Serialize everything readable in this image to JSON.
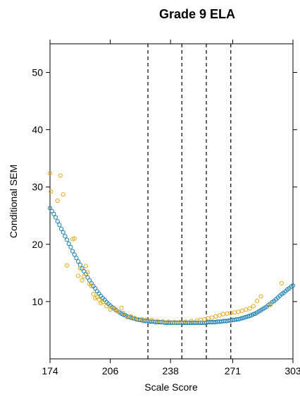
{
  "chart_data": {
    "type": "scatter",
    "title": "Grade 9 ELA",
    "xlabel": "Scale Score",
    "ylabel": "Conditional SEM",
    "xlim": [
      174,
      303
    ],
    "ylim": [
      0,
      55
    ],
    "x_ticks": [
      174,
      206,
      238,
      271,
      303
    ],
    "y_ticks": [
      10,
      20,
      30,
      40,
      50
    ],
    "grid": false,
    "cut_scores": [
      226,
      244,
      257,
      270
    ],
    "colors": {
      "blue": "#1a7fb0",
      "orange": "#e6a817",
      "axis": "#000000"
    },
    "series": [
      {
        "color": "#1a7fb0",
        "marker": "open-circle",
        "points": [
          [
            174,
            26.3
          ],
          [
            175,
            25.8
          ],
          [
            176,
            25.3
          ],
          [
            177,
            24.7
          ],
          [
            178,
            24.0
          ],
          [
            179,
            23.4
          ],
          [
            180,
            22.7
          ],
          [
            181,
            22.1
          ],
          [
            182,
            21.4
          ],
          [
            183,
            20.8
          ],
          [
            184,
            20.1
          ],
          [
            185,
            19.5
          ],
          [
            186,
            18.8
          ],
          [
            187,
            18.2
          ],
          [
            188,
            17.6
          ],
          [
            189,
            17.0
          ],
          [
            190,
            16.4
          ],
          [
            191,
            15.8
          ],
          [
            192,
            15.3
          ],
          [
            193,
            14.8
          ],
          [
            194,
            14.2
          ],
          [
            195,
            13.7
          ],
          [
            196,
            13.2
          ],
          [
            197,
            12.7
          ],
          [
            198,
            12.3
          ],
          [
            199,
            11.8
          ],
          [
            200,
            11.4
          ],
          [
            201,
            11.0
          ],
          [
            202,
            10.6
          ],
          [
            203,
            10.3
          ],
          [
            204,
            9.9
          ],
          [
            205,
            9.6
          ],
          [
            206,
            9.3
          ],
          [
            207,
            9.0
          ],
          [
            208,
            8.8
          ],
          [
            209,
            8.5
          ],
          [
            210,
            8.3
          ],
          [
            211,
            8.1
          ],
          [
            212,
            7.9
          ],
          [
            213,
            7.7
          ],
          [
            214,
            7.6
          ],
          [
            215,
            7.4
          ],
          [
            216,
            7.3
          ],
          [
            217,
            7.2
          ],
          [
            218,
            7.1
          ],
          [
            219,
            7.0
          ],
          [
            220,
            6.9
          ],
          [
            221,
            6.8
          ],
          [
            222,
            6.8
          ],
          [
            223,
            6.7
          ],
          [
            224,
            6.6
          ],
          [
            225,
            6.6
          ],
          [
            226,
            6.6
          ],
          [
            227,
            6.5
          ],
          [
            228,
            6.5
          ],
          [
            229,
            6.5
          ],
          [
            230,
            6.4
          ],
          [
            231,
            6.4
          ],
          [
            232,
            6.4
          ],
          [
            233,
            6.4
          ],
          [
            234,
            6.4
          ],
          [
            235,
            6.3
          ],
          [
            236,
            6.3
          ],
          [
            237,
            6.3
          ],
          [
            238,
            6.3
          ],
          [
            239,
            6.3
          ],
          [
            240,
            6.3
          ],
          [
            241,
            6.3
          ],
          [
            242,
            6.3
          ],
          [
            243,
            6.3
          ],
          [
            244,
            6.3
          ],
          [
            245,
            6.3
          ],
          [
            246,
            6.3
          ],
          [
            247,
            6.3
          ],
          [
            248,
            6.3
          ],
          [
            249,
            6.3
          ],
          [
            250,
            6.3
          ],
          [
            251,
            6.3
          ],
          [
            252,
            6.3
          ],
          [
            253,
            6.3
          ],
          [
            254,
            6.3
          ],
          [
            255,
            6.3
          ],
          [
            256,
            6.3
          ],
          [
            257,
            6.3
          ],
          [
            258,
            6.4
          ],
          [
            259,
            6.4
          ],
          [
            260,
            6.4
          ],
          [
            261,
            6.4
          ],
          [
            262,
            6.4
          ],
          [
            263,
            6.5
          ],
          [
            264,
            6.5
          ],
          [
            265,
            6.5
          ],
          [
            266,
            6.6
          ],
          [
            267,
            6.6
          ],
          [
            268,
            6.6
          ],
          [
            269,
            6.7
          ],
          [
            270,
            6.7
          ],
          [
            271,
            6.8
          ],
          [
            272,
            6.8
          ],
          [
            273,
            6.9
          ],
          [
            274,
            6.9
          ],
          [
            275,
            7.0
          ],
          [
            276,
            7.1
          ],
          [
            277,
            7.2
          ],
          [
            278,
            7.3
          ],
          [
            279,
            7.4
          ],
          [
            280,
            7.5
          ],
          [
            281,
            7.6
          ],
          [
            282,
            7.8
          ],
          [
            283,
            7.9
          ],
          [
            284,
            8.1
          ],
          [
            285,
            8.3
          ],
          [
            286,
            8.5
          ],
          [
            287,
            8.7
          ],
          [
            288,
            8.9
          ],
          [
            289,
            9.1
          ],
          [
            290,
            9.4
          ],
          [
            291,
            9.6
          ],
          [
            292,
            9.9
          ],
          [
            293,
            10.1
          ],
          [
            294,
            10.4
          ],
          [
            295,
            10.7
          ],
          [
            296,
            11.0
          ],
          [
            297,
            11.3
          ],
          [
            298,
            11.5
          ],
          [
            299,
            11.8
          ],
          [
            300,
            12.1
          ],
          [
            301,
            12.3
          ],
          [
            302,
            12.6
          ],
          [
            303,
            12.8
          ]
        ]
      },
      {
        "color": "#e6a817",
        "marker": "open-circle",
        "points": [
          [
            174,
            32.4
          ],
          [
            174.5,
            29.2
          ],
          [
            178,
            27.6
          ],
          [
            179.5,
            32.0
          ],
          [
            181,
            28.7
          ],
          [
            183,
            16.3
          ],
          [
            186,
            20.9
          ],
          [
            187,
            21.0
          ],
          [
            189,
            14.5
          ],
          [
            190,
            15.8
          ],
          [
            191,
            13.7
          ],
          [
            192,
            14.4
          ],
          [
            193,
            16.2
          ],
          [
            194,
            15.1
          ],
          [
            195,
            13.1
          ],
          [
            196,
            12.7
          ],
          [
            197,
            11.3
          ],
          [
            198,
            10.6
          ],
          [
            199,
            10.8
          ],
          [
            200,
            10.3
          ],
          [
            201,
            9.7
          ],
          [
            202,
            9.9
          ],
          [
            204,
            9.2
          ],
          [
            206,
            8.6
          ],
          [
            207,
            8.9
          ],
          [
            209,
            8.6
          ],
          [
            210,
            8.3
          ],
          [
            212,
            8.9
          ],
          [
            213,
            8.0
          ],
          [
            215,
            7.3
          ],
          [
            217,
            7.4
          ],
          [
            219,
            7.1
          ],
          [
            221,
            6.9
          ],
          [
            223,
            6.9
          ],
          [
            225,
            6.8
          ],
          [
            228,
            6.8
          ],
          [
            231,
            6.6
          ],
          [
            234,
            6.5
          ],
          [
            237,
            6.5
          ],
          [
            240,
            6.4
          ],
          [
            243,
            6.4
          ],
          [
            246,
            6.5
          ],
          [
            249,
            6.6
          ],
          [
            252,
            6.7
          ],
          [
            254,
            6.8
          ],
          [
            256,
            6.9
          ],
          [
            258,
            7.1
          ],
          [
            260,
            7.2
          ],
          [
            262,
            7.4
          ],
          [
            264,
            7.6
          ],
          [
            266,
            7.8
          ],
          [
            268,
            7.9
          ],
          [
            270,
            8.0
          ],
          [
            272,
            8.1
          ],
          [
            274,
            8.2
          ],
          [
            276,
            8.4
          ],
          [
            278,
            8.6
          ],
          [
            280,
            8.8
          ],
          [
            282,
            9.2
          ],
          [
            284,
            10.1
          ],
          [
            286,
            10.9
          ],
          [
            291,
            9.4
          ],
          [
            297,
            13.2
          ]
        ]
      }
    ]
  }
}
